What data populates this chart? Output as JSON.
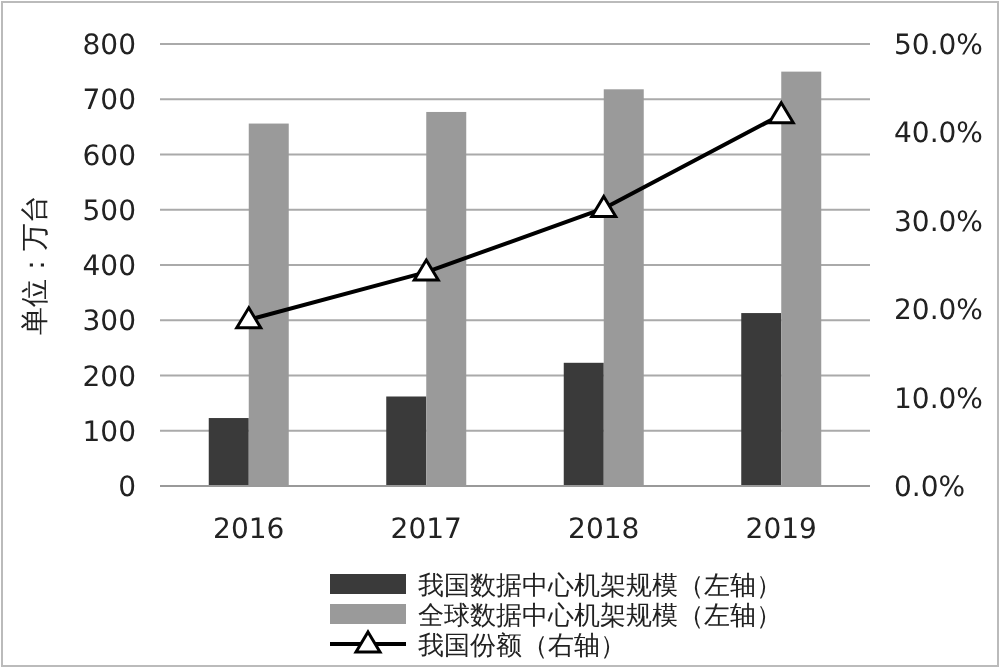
{
  "chart_data": {
    "type": "bar",
    "categories": [
      "2016",
      "2017",
      "2018",
      "2019"
    ],
    "ylabel": "单位：万台",
    "ylim": [
      0,
      800
    ],
    "yticks": [
      0,
      100,
      200,
      300,
      400,
      500,
      600,
      700,
      800
    ],
    "y2lim": [
      0,
      50
    ],
    "y2ticks": [
      {
        "value": 0,
        "label": "0.0%"
      },
      {
        "value": 10,
        "label": "10.0%"
      },
      {
        "value": 20,
        "label": "20.0%"
      },
      {
        "value": 30,
        "label": "30.0%"
      },
      {
        "value": 40,
        "label": "40.0%"
      },
      {
        "value": 50,
        "label": "50.0%"
      }
    ],
    "grid": "y",
    "legend": "bottom",
    "series": [
      {
        "name": "我国数据中心机架规模（左轴）",
        "color": "#3a3a3a",
        "values": [
          123,
          162,
          223,
          313
        ]
      },
      {
        "name": "全球数据中心机架规模（左轴）",
        "color": "#9a9a9a",
        "values": [
          656,
          677,
          718,
          750
        ]
      },
      {
        "name": "我国份额（右轴）",
        "type": "line",
        "axis": "y2",
        "color": "#000000",
        "marker": "triangle",
        "values": [
          18.8,
          24.2,
          31.4,
          42.0
        ]
      }
    ]
  }
}
